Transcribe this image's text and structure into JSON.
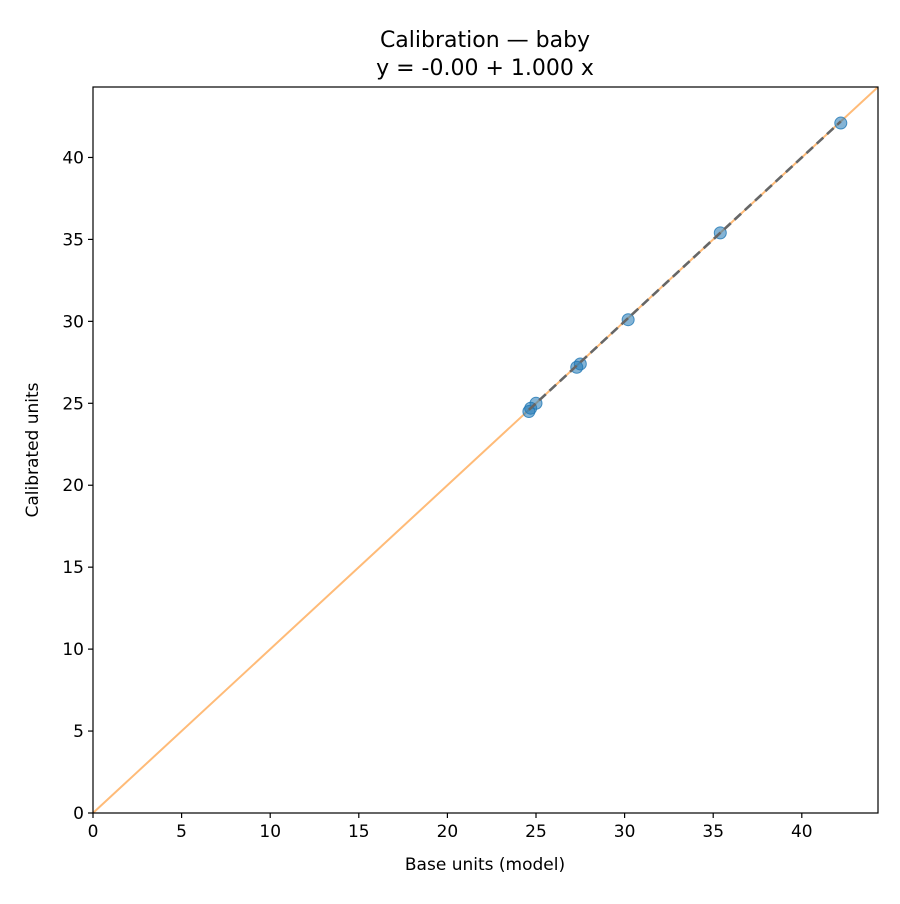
{
  "chart_data": {
    "type": "scatter",
    "title": "Calibration — baby",
    "subtitle": "y = -0.00 + 1.000 x",
    "xlabel": "Base units (model)",
    "ylabel": "Calibrated units",
    "xlim": [
      0,
      44.3
    ],
    "ylim": [
      0,
      44.3
    ],
    "x_ticks": [
      0,
      5,
      10,
      15,
      20,
      25,
      30,
      35,
      40
    ],
    "y_ticks": [
      0,
      5,
      10,
      15,
      20,
      25,
      30,
      35,
      40
    ],
    "grid": false,
    "points": [
      {
        "x": 24.6,
        "y": 24.5
      },
      {
        "x": 24.7,
        "y": 24.7
      },
      {
        "x": 25.0,
        "y": 25.0
      },
      {
        "x": 27.3,
        "y": 27.2
      },
      {
        "x": 27.5,
        "y": 27.4
      },
      {
        "x": 30.2,
        "y": 30.1
      },
      {
        "x": 35.4,
        "y": 35.4
      },
      {
        "x": 42.2,
        "y": 42.1
      }
    ],
    "identity_line": {
      "from": [
        0,
        0
      ],
      "to": [
        44.3,
        44.3
      ]
    },
    "fit_line": {
      "intercept": 0.0,
      "slope": 1.0,
      "x_range": [
        24.6,
        42.2
      ]
    },
    "colors": {
      "points": "#1f77b4",
      "identity": "#ffbb78",
      "fit": "#666666"
    }
  }
}
